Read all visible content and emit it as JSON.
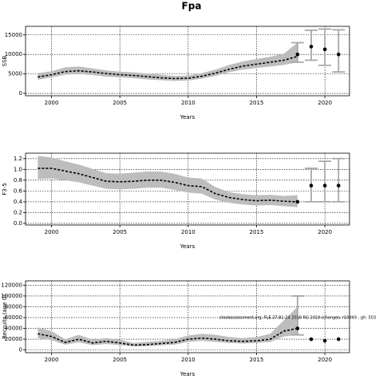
{
  "title": "Fpa",
  "chart_data": [
    {
      "type": "line",
      "ylabel": "SSB",
      "xlabel": "Years",
      "x": [
        1999,
        2000,
        2001,
        2002,
        2003,
        2004,
        2005,
        2006,
        2007,
        2008,
        2009,
        2010,
        2011,
        2012,
        2013,
        2014,
        2015,
        2016,
        2017,
        2018
      ],
      "values": [
        4200,
        4800,
        5600,
        5800,
        5500,
        5100,
        4800,
        4600,
        4300,
        4000,
        3800,
        3900,
        4400,
        5200,
        6200,
        7000,
        7500,
        8000,
        8500,
        9500
      ],
      "lower": [
        3500,
        4100,
        4800,
        5000,
        4700,
        4300,
        4100,
        3900,
        3600,
        3400,
        3200,
        3300,
        3800,
        4500,
        5400,
        6100,
        6500,
        6900,
        7300,
        8000
      ],
      "upper": [
        5200,
        5700,
        6700,
        6900,
        6400,
        5900,
        5600,
        5400,
        5100,
        4800,
        4500,
        4600,
        5200,
        6100,
        7300,
        8200,
        8800,
        9400,
        10200,
        13000
      ],
      "points": {
        "x": [
          2018,
          2019,
          2020,
          2021
        ],
        "values": [
          10000,
          12000,
          11300,
          10000
        ],
        "lower": [
          8000,
          8500,
          7200,
          5500
        ],
        "upper": [
          13000,
          16200,
          16500,
          16300
        ]
      },
      "xlim": [
        1998.1,
        2021.8
      ],
      "ylim": [
        -600,
        17200
      ],
      "xticks": [
        2000,
        2005,
        2010,
        2015,
        2020
      ],
      "yticks": [
        0,
        5000,
        10000,
        15000
      ],
      "grid": true,
      "line_color": "#000000",
      "band_color": "#bdbdbd",
      "error_color": "#a8a8a8"
    },
    {
      "type": "line",
      "ylabel": "F3-5",
      "xlabel": "Years",
      "x": [
        1999,
        2000,
        2001,
        2002,
        2003,
        2004,
        2005,
        2006,
        2007,
        2008,
        2009,
        2010,
        2011,
        2012,
        2013,
        2014,
        2015,
        2016,
        2017,
        2018
      ],
      "values": [
        1.02,
        1.02,
        0.97,
        0.92,
        0.85,
        0.78,
        0.77,
        0.78,
        0.8,
        0.8,
        0.76,
        0.7,
        0.68,
        0.55,
        0.48,
        0.44,
        0.42,
        0.43,
        0.41,
        0.4
      ],
      "lower": [
        0.82,
        0.83,
        0.8,
        0.76,
        0.7,
        0.64,
        0.63,
        0.64,
        0.66,
        0.66,
        0.62,
        0.57,
        0.55,
        0.44,
        0.38,
        0.35,
        0.33,
        0.34,
        0.32,
        0.3
      ],
      "upper": [
        1.25,
        1.22,
        1.15,
        1.09,
        1.01,
        0.93,
        0.92,
        0.94,
        0.96,
        0.96,
        0.92,
        0.85,
        0.83,
        0.67,
        0.58,
        0.54,
        0.52,
        0.53,
        0.51,
        0.52
      ],
      "points": {
        "x": [
          2018,
          2019,
          2020,
          2021
        ],
        "values": [
          0.4,
          0.7,
          0.7,
          0.7
        ],
        "lower": [
          null,
          0.4,
          0.4,
          0.4
        ],
        "upper": [
          null,
          1.02,
          1.15,
          1.2
        ]
      },
      "xlim": [
        1998.1,
        2021.8
      ],
      "ylim": [
        -0.03,
        1.3
      ],
      "xticks": [
        2000,
        2005,
        2010,
        2015,
        2020
      ],
      "yticks": [
        {
          "value": 0,
          "label": "0.0"
        },
        0.2,
        0.4,
        0.6,
        0.8,
        {
          "value": 1,
          "label": "1.0"
        },
        1.2
      ],
      "grid": true,
      "line_color": "#000000",
      "band_color": "#bdbdbd",
      "error_color": "#a8a8a8"
    },
    {
      "type": "line",
      "ylabel": "Recruits (age 0)",
      "xlabel": "Years",
      "annotation": "stockassessment.org, FLE.27.81-24 2018 RG 2019 (changes: r10949 , git: 503",
      "x": [
        1999,
        2000,
        2001,
        2002,
        2003,
        2004,
        2005,
        2006,
        2007,
        2008,
        2009,
        2010,
        2011,
        2012,
        2013,
        2014,
        2015,
        2016,
        2017,
        2018
      ],
      "values": [
        30000,
        25000,
        14000,
        20000,
        13000,
        16000,
        13000,
        9000,
        10000,
        12000,
        14000,
        20000,
        22000,
        20000,
        17000,
        16000,
        17000,
        20000,
        35000,
        40000
      ],
      "lower": [
        22000,
        18000,
        10000,
        14000,
        9000,
        11000,
        9000,
        6500,
        7000,
        8500,
        10000,
        15000,
        17000,
        15000,
        13000,
        12000,
        13000,
        15000,
        25000,
        28000
      ],
      "upper": [
        42000,
        35000,
        20000,
        28000,
        19000,
        22000,
        19000,
        13000,
        15000,
        17000,
        20000,
        27000,
        30000,
        28000,
        24000,
        22000,
        24000,
        30000,
        55000,
        80000
      ],
      "points": {
        "x": [
          2018,
          2019,
          2020,
          2021
        ],
        "values": [
          40000,
          20000,
          17000,
          20000
        ],
        "lower": [
          28000,
          null,
          null,
          null
        ],
        "upper": [
          100000,
          null,
          null,
          null
        ]
      },
      "xlim": [
        1998.1,
        2021.8
      ],
      "ylim": [
        -5000,
        128000
      ],
      "xticks": [
        2000,
        2005,
        2010,
        2015,
        2020
      ],
      "yticks": [
        0,
        20000,
        40000,
        60000,
        80000,
        100000,
        120000
      ],
      "grid": true,
      "line_color": "#000000",
      "band_color": "#bdbdbd",
      "error_color": "#a8a8a8"
    }
  ]
}
